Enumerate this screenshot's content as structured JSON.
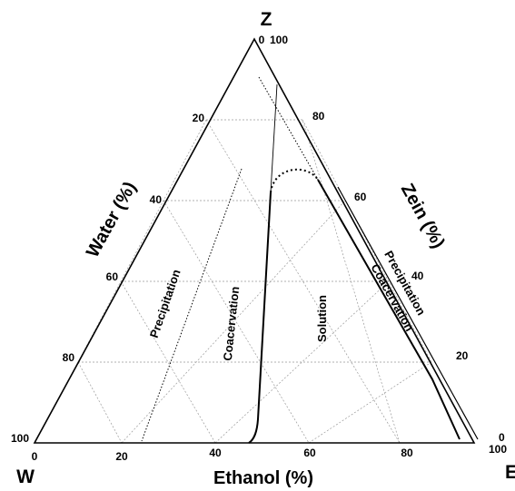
{
  "diagram": {
    "vertices": {
      "top": "Z",
      "left": "W",
      "right": "E"
    },
    "axes": {
      "ethanol": {
        "title": "Ethanol (%)",
        "ticks": [
          "0",
          "20",
          "40",
          "60",
          "80",
          "100"
        ]
      },
      "water": {
        "title": "Water (%)",
        "ticks": [
          "20",
          "40",
          "60",
          "80",
          "100"
        ]
      },
      "zein": {
        "title": "Zein (%)",
        "ticks": [
          "0",
          "20",
          "40",
          "60",
          "80",
          "100"
        ]
      },
      "apex_zero": "0"
    },
    "regions": {
      "precipitation_left": "Precipitation",
      "coacervation_left": "Coacervation",
      "solution": "Solution",
      "precipitation_right": "Precipitation",
      "coacervation_right": "Coacervation"
    }
  }
}
